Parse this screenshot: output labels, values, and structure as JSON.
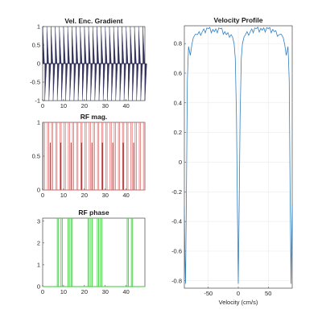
{
  "figure": {
    "background": "#ffffff"
  },
  "chart_data": [
    {
      "id": "grad",
      "type": "line",
      "title": "Vel. Enc. Gradient",
      "xlabel": "",
      "ylabel": "",
      "xlim": [
        0,
        49
      ],
      "ylim": [
        -1,
        1
      ],
      "xticks": [
        0,
        10,
        20,
        30,
        40
      ],
      "yticks": [
        -1,
        -0.5,
        0,
        0.5,
        1
      ],
      "grid": false,
      "color": "#1c1c4a",
      "series": [
        {
          "description_of_shape": "bipolar gradient lobes",
          "x_start": 0,
          "x_step": 1,
          "count": 25,
          "lobe_pattern": [
            1,
            -1
          ],
          "pulse_fill_ratio": 0.9
        }
      ]
    },
    {
      "id": "rfmag",
      "type": "line",
      "title": "RF mag.",
      "xlabel": "",
      "ylabel": "",
      "xlim": [
        0,
        49
      ],
      "ylim": [
        0,
        1
      ],
      "xticks": [
        0,
        10,
        20,
        30,
        40
      ],
      "yticks": [
        0,
        0.5,
        1
      ],
      "grid": false,
      "color": "#e06666",
      "dark_color": "#7a1010",
      "series": [
        {
          "pulses": [
            {
              "start": 0.3,
              "end": 0.9,
              "value": 1
            },
            {
              "start": 2.3,
              "end": 2.9,
              "value": 1
            },
            {
              "start": 4.3,
              "end": 4.9,
              "value": 1
            },
            {
              "start": 6.3,
              "end": 6.9,
              "value": 1
            },
            {
              "start": 8.3,
              "end": 8.9,
              "value": 1
            },
            {
              "start": 10.3,
              "end": 10.9,
              "value": 1
            },
            {
              "start": 12.3,
              "end": 12.9,
              "value": 1
            },
            {
              "start": 14.3,
              "end": 14.9,
              "value": 1
            },
            {
              "start": 16.3,
              "end": 16.9,
              "value": 1
            },
            {
              "start": 18.3,
              "end": 18.9,
              "value": 1
            },
            {
              "start": 20.3,
              "end": 20.9,
              "value": 1
            },
            {
              "start": 22.3,
              "end": 22.9,
              "value": 1
            },
            {
              "start": 24.3,
              "end": 24.9,
              "value": 1
            },
            {
              "start": 26.3,
              "end": 26.9,
              "value": 1
            },
            {
              "start": 28.3,
              "end": 28.9,
              "value": 1
            },
            {
              "start": 30.3,
              "end": 30.9,
              "value": 1
            },
            {
              "start": 32.3,
              "end": 32.9,
              "value": 1
            },
            {
              "start": 34.3,
              "end": 34.9,
              "value": 1
            },
            {
              "start": 36.3,
              "end": 36.9,
              "value": 1
            },
            {
              "start": 38.3,
              "end": 38.9,
              "value": 1
            },
            {
              "start": 40.3,
              "end": 40.9,
              "value": 1
            },
            {
              "start": 42.3,
              "end": 42.9,
              "value": 1
            },
            {
              "start": 44.3,
              "end": 44.9,
              "value": 1
            },
            {
              "start": 46.3,
              "end": 46.9,
              "value": 1
            },
            {
              "start": 48.3,
              "end": 48.9,
              "value": 1
            }
          ],
          "small_spikes": [
            {
              "x": 3.6,
              "value": 0.7
            },
            {
              "x": 8.6,
              "value": 0.7
            },
            {
              "x": 13.6,
              "value": 0.7
            },
            {
              "x": 18.6,
              "value": 0.7
            },
            {
              "x": 23.6,
              "value": 0.7
            },
            {
              "x": 28.6,
              "value": 0.7
            },
            {
              "x": 33.6,
              "value": 0.7
            },
            {
              "x": 38.6,
              "value": 0.7
            },
            {
              "x": 43.6,
              "value": 0.7
            }
          ]
        }
      ]
    },
    {
      "id": "rfphase",
      "type": "line",
      "title": "RF phase",
      "xlabel": "",
      "ylabel": "",
      "xlim": [
        0,
        49
      ],
      "ylim": [
        0,
        3.14
      ],
      "xticks": [
        0,
        10,
        20,
        30,
        40
      ],
      "yticks": [
        0,
        1,
        2,
        3
      ],
      "grid": false,
      "color": "#33cc33",
      "series": [
        {
          "high_value": 3.14,
          "low_value": 0,
          "pulses_high": [
            {
              "start": 7.0,
              "end": 7.6
            },
            {
              "start": 8.8,
              "end": 9.4
            },
            {
              "start": 12.2,
              "end": 12.8
            },
            {
              "start": 13.6,
              "end": 14.2
            },
            {
              "start": 21.7,
              "end": 22.3
            },
            {
              "start": 23.1,
              "end": 23.7
            },
            {
              "start": 26.2,
              "end": 26.8
            },
            {
              "start": 27.7,
              "end": 28.3
            },
            {
              "start": 40.5,
              "end": 41.1
            },
            {
              "start": 42.5,
              "end": 43.1
            }
          ]
        }
      ]
    },
    {
      "id": "velprofile",
      "type": "line",
      "title": "Velocity Profile",
      "xlabel": "Velocity (cm/s)",
      "ylabel": "",
      "xlim": [
        -90,
        90
      ],
      "ylim": [
        -0.85,
        0.92
      ],
      "xticks": [
        -50,
        0,
        50
      ],
      "yticks": [
        -0.8,
        -0.6,
        -0.4,
        -0.2,
        0,
        0.2,
        0.4,
        0.6,
        0.8
      ],
      "grid": true,
      "color": "#2f7fc1",
      "series": [
        {
          "model": "plateau with notches",
          "plateau_level": 0.87,
          "notch_centers": [
            -88,
            0,
            88
          ],
          "notch_depth": -0.82,
          "period": 88,
          "ripples": [
            {
              "x": -80,
              "y": 0.72
            },
            {
              "x": -75,
              "y": 0.84
            },
            {
              "x": -68,
              "y": 0.86
            },
            {
              "x": -60,
              "y": 0.88
            },
            {
              "x": -50,
              "y": 0.9
            },
            {
              "x": -40,
              "y": 0.88
            },
            {
              "x": -30,
              "y": 0.9
            },
            {
              "x": -20,
              "y": 0.86
            },
            {
              "x": -12,
              "y": 0.86
            },
            {
              "x": -7,
              "y": 0.8
            },
            {
              "x": -5,
              "y": 0.7
            },
            {
              "x": 5,
              "y": 0.7
            },
            {
              "x": 7,
              "y": 0.8
            },
            {
              "x": 12,
              "y": 0.86
            },
            {
              "x": 20,
              "y": 0.88
            },
            {
              "x": 30,
              "y": 0.9
            },
            {
              "x": 40,
              "y": 0.89
            },
            {
              "x": 50,
              "y": 0.9
            },
            {
              "x": 60,
              "y": 0.88
            },
            {
              "x": 68,
              "y": 0.86
            },
            {
              "x": 75,
              "y": 0.84
            },
            {
              "x": 80,
              "y": 0.72
            }
          ]
        }
      ]
    }
  ]
}
